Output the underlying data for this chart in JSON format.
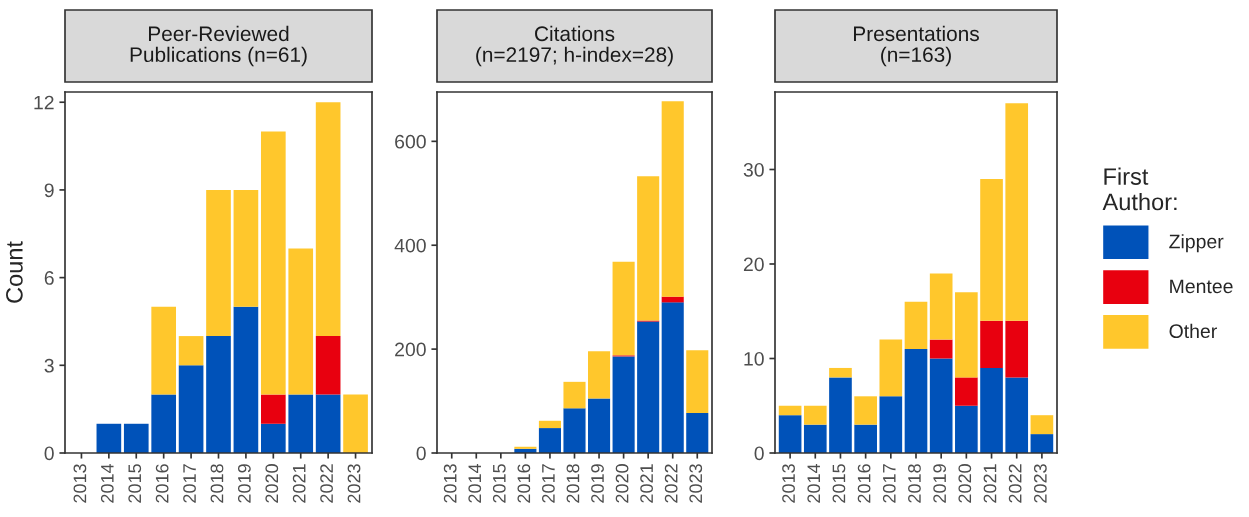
{
  "chart_data": [
    {
      "type": "bar",
      "title": "Peer-Reviewed\nPublications (n=61)",
      "ylabel": "Count",
      "stacked": true,
      "categories": [
        "2013",
        "2014",
        "2015",
        "2016",
        "2017",
        "2018",
        "2019",
        "2020",
        "2021",
        "2022",
        "2023"
      ],
      "ylim": [
        0,
        12.35
      ],
      "yticks": [
        0,
        3,
        6,
        9,
        12
      ],
      "grid": false,
      "legend": "right",
      "legend_title": "First\nAuthor:",
      "series": [
        {
          "name": "Zipper",
          "color": "#0052b9",
          "values": [
            0,
            1,
            1,
            2,
            3,
            4,
            5,
            1,
            2,
            2,
            0
          ]
        },
        {
          "name": "Mentee",
          "color": "#e8000f",
          "values": [
            0,
            0,
            0,
            0,
            0,
            0,
            0,
            1,
            0,
            2,
            0
          ]
        },
        {
          "name": "Other",
          "color": "#ffc72c",
          "values": [
            0,
            0,
            0,
            3,
            1,
            5,
            4,
            9,
            5,
            8,
            2
          ]
        }
      ]
    },
    {
      "type": "bar",
      "title": "Citations\n(n=2197; h-index=28)",
      "stacked": true,
      "categories": [
        "2013",
        "2014",
        "2015",
        "2016",
        "2017",
        "2018",
        "2019",
        "2020",
        "2021",
        "2022",
        "2023"
      ],
      "ylim": [
        0,
        695
      ],
      "yticks": [
        0,
        200,
        400,
        600
      ],
      "grid": false,
      "series": [
        {
          "color": "#0052b9",
          "values": [
            0,
            0,
            0,
            8,
            48,
            86,
            105,
            186,
            253,
            290,
            77
          ]
        },
        {
          "color": "#e8000f",
          "values": [
            0,
            0,
            0,
            0,
            0,
            0,
            0,
            2,
            2,
            11,
            0
          ]
        },
        {
          "color": "#ffc72c",
          "values": [
            0,
            0,
            0,
            4,
            14,
            51,
            91,
            180,
            278,
            376,
            121
          ]
        }
      ]
    },
    {
      "type": "bar",
      "title": "Presentations\n(n=163)",
      "stacked": true,
      "categories": [
        "2013",
        "2014",
        "2015",
        "2016",
        "2017",
        "2018",
        "2019",
        "2020",
        "2021",
        "2022",
        "2023"
      ],
      "ylim": [
        0,
        38.2
      ],
      "yticks": [
        0,
        10,
        20,
        30
      ],
      "grid": false,
      "series": [
        {
          "color": "#0052b9",
          "values": [
            4,
            3,
            8,
            3,
            6,
            11,
            10,
            5,
            9,
            8,
            2
          ]
        },
        {
          "color": "#e8000f",
          "values": [
            0,
            0,
            0,
            0,
            0,
            0,
            2,
            3,
            5,
            6,
            0
          ]
        },
        {
          "color": "#ffc72c",
          "values": [
            1,
            2,
            1,
            3,
            6,
            5,
            7,
            9,
            15,
            23,
            2
          ]
        }
      ]
    }
  ]
}
